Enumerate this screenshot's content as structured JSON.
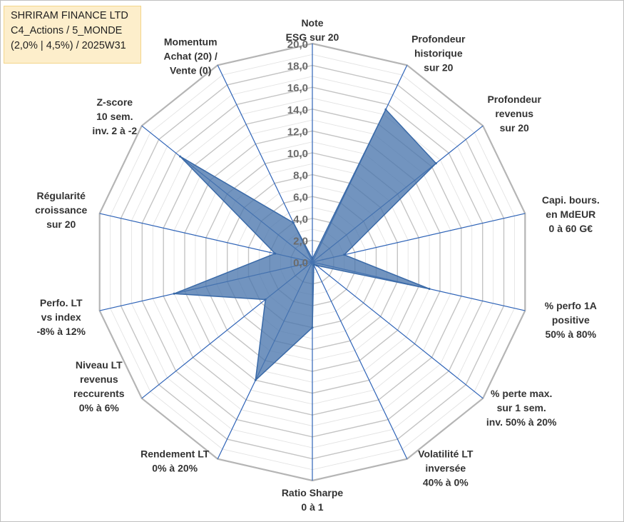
{
  "header": {
    "line1": "SHRIRAM FINANCE LTD",
    "line2": "C4_Actions / 5_MONDE",
    "line3": "(2,0% | 4,5%) / 2025W31"
  },
  "colors": {
    "grid": "#c8c8c8",
    "spoke": "#2e63b7",
    "fill": "#4a76ad",
    "title_box_bg": "#fdeecb",
    "title_box_border": "#f3d58a"
  },
  "chart_data": {
    "type": "radar",
    "title": "",
    "rmin": 0,
    "rmax": 20,
    "tick_labels": [
      "0,0",
      "2,0",
      "4,0",
      "6,0",
      "8,0",
      "10,0",
      "12,0",
      "14,0",
      "16,0",
      "18,0",
      "20,0"
    ],
    "axes": [
      {
        "label": [
          "Note",
          "ESG sur 20"
        ],
        "value": 0.3
      },
      {
        "label": [
          "Profondeur",
          "historique",
          "sur 20"
        ],
        "value": 15.5
      },
      {
        "label": [
          "Profondeur",
          "revenus",
          "sur 20"
        ],
        "value": 14.5
      },
      {
        "label": [
          "Capi. bours.",
          "en MdEUR",
          "0 à 60 G€"
        ],
        "value": 3.0
      },
      {
        "label": [
          "% perfo 1A",
          "positive",
          "50% à 80%"
        ],
        "value": 11.0
      },
      {
        "label": [
          "% perte max.",
          "sur 1 sem.",
          "inv. 50% à 20%"
        ],
        "value": 0.5
      },
      {
        "label": [
          "Volatilité LT",
          "inversée",
          "40% à 0%"
        ],
        "value": 0.3
      },
      {
        "label": [
          "Ratio Sharpe",
          "0 à 1"
        ],
        "value": 6.0
      },
      {
        "label": [
          "Rendement LT",
          "0% à 20%"
        ],
        "value": 12.0
      },
      {
        "label": [
          "Niveau LT",
          "revenus",
          "reccurents",
          "0% à 6%"
        ],
        "value": 5.5
      },
      {
        "label": [
          "Perfo. LT",
          "vs index",
          "-8% à 12%"
        ],
        "value": 13.0
      },
      {
        "label": [
          "Régularité",
          "croissance",
          "sur 20"
        ],
        "value": 3.5
      },
      {
        "label": [
          "Z-score",
          "10 sem.",
          "inv. 2 à -2"
        ],
        "value": 15.5
      },
      {
        "label": [
          "Momentum",
          "Achat (20) /",
          "Vente (0)"
        ],
        "value": 4.0
      }
    ]
  }
}
